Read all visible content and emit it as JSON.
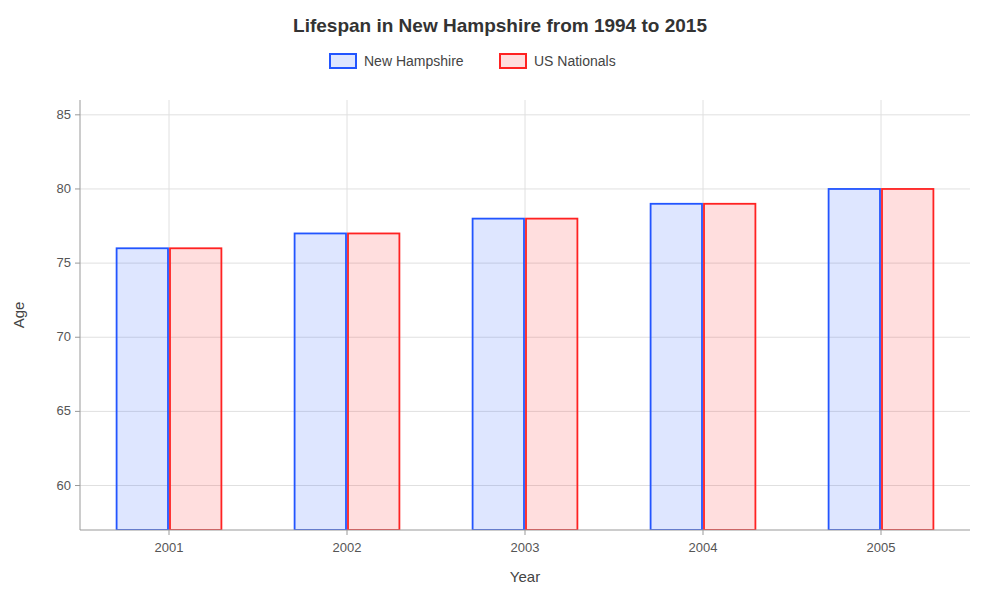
{
  "chart_data": {
    "type": "bar",
    "title": "Lifespan in New Hampshire from 1994 to 2015",
    "x_label": "Year",
    "y_label": "Age",
    "categories": [
      "2001",
      "2002",
      "2003",
      "2004",
      "2005"
    ],
    "series": [
      {
        "name": "New Hampshire",
        "color": "#2255ff",
        "values": [
          76,
          77,
          78,
          79,
          80
        ]
      },
      {
        "name": "US Nationals",
        "color": "#ff2222",
        "values": [
          76,
          77,
          78,
          79,
          80
        ]
      }
    ],
    "ylim": [
      57,
      86
    ],
    "yticks": [
      60,
      65,
      70,
      75,
      80,
      85
    ],
    "grid": true,
    "legend": "top"
  }
}
